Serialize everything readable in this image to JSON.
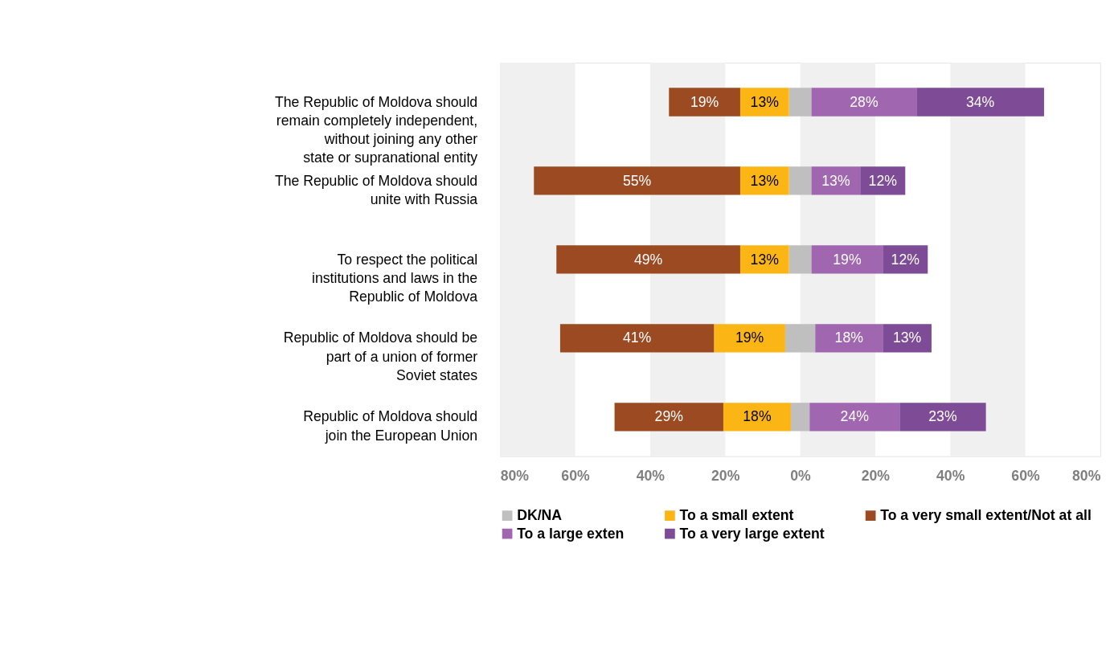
{
  "chart_data": {
    "type": "bar",
    "orientation": "horizontal",
    "categories": [
      "The Republic of Moldova should remain completely independent, without joining any other state or supranational entity",
      "The Republic of Moldova should unite with Russia",
      "To respect the political institutions and laws in the Republic of Moldova",
      "Republic of Moldova should be part of a union of former Soviet states",
      "Republic of Moldova should join the European Union"
    ],
    "series": [
      {
        "name": "DK/NA",
        "color": "#bfbfbf",
        "base": [
          -3,
          -3,
          -3,
          -4,
          -2.5
        ],
        "values": [
          6,
          6,
          6,
          8,
          5
        ]
      },
      {
        "name": "To a small extent",
        "color": "#fbb615",
        "base": [
          -16,
          -16,
          -16,
          -23,
          -20.5
        ],
        "values": [
          13,
          13,
          13,
          19,
          18
        ],
        "value_labels": [
          "13%",
          "13%",
          "13%",
          "19%",
          "18%"
        ]
      },
      {
        "name": "To a very small extent/Not at all",
        "color": "#9b4a22",
        "base": [
          -35,
          -71,
          -65,
          -64,
          -49.5
        ],
        "values": [
          19,
          55,
          49,
          41,
          29
        ],
        "value_labels": [
          "19%",
          "55%",
          "49%",
          "41%",
          "29%"
        ]
      },
      {
        "name": "To a large exten",
        "color": "#a066b0",
        "base": [
          3,
          3,
          3,
          4,
          2.5
        ],
        "values": [
          28,
          13,
          19,
          18,
          24
        ],
        "value_labels": [
          "28%",
          "13%",
          "19%",
          "18%",
          "24%"
        ]
      },
      {
        "name": "To a very large extent",
        "color": "#7e4b96",
        "base": [
          31,
          16,
          22,
          22,
          26.5
        ],
        "values": [
          34,
          12,
          12,
          13,
          23
        ],
        "value_labels": [
          "34%",
          "12%",
          "12%",
          "13%",
          "23%"
        ]
      }
    ],
    "xlim": [
      -80,
      80
    ],
    "xticks": [
      {
        "value": -80,
        "label": "80%"
      },
      {
        "value": -60,
        "label": "60%"
      },
      {
        "value": -40,
        "label": "40%"
      },
      {
        "value": -20,
        "label": "20%"
      },
      {
        "value": 0,
        "label": "0%"
      },
      {
        "value": 20,
        "label": "20%"
      },
      {
        "value": 40,
        "label": "40%"
      },
      {
        "value": 60,
        "label": "60%"
      },
      {
        "value": 80,
        "label": "80%"
      }
    ],
    "bands": [
      {
        "axis": "x",
        "from": -80,
        "to": -60,
        "color": "#f0f0f0"
      },
      {
        "axis": "x",
        "from": -40,
        "to": -20,
        "color": "#f0f0f0"
      },
      {
        "axis": "x",
        "from": 0,
        "to": 20,
        "color": "#f0f0f0"
      },
      {
        "axis": "x",
        "from": 40,
        "to": 60,
        "color": "#f0f0f0"
      }
    ],
    "grid": false,
    "legend": "bottom"
  }
}
